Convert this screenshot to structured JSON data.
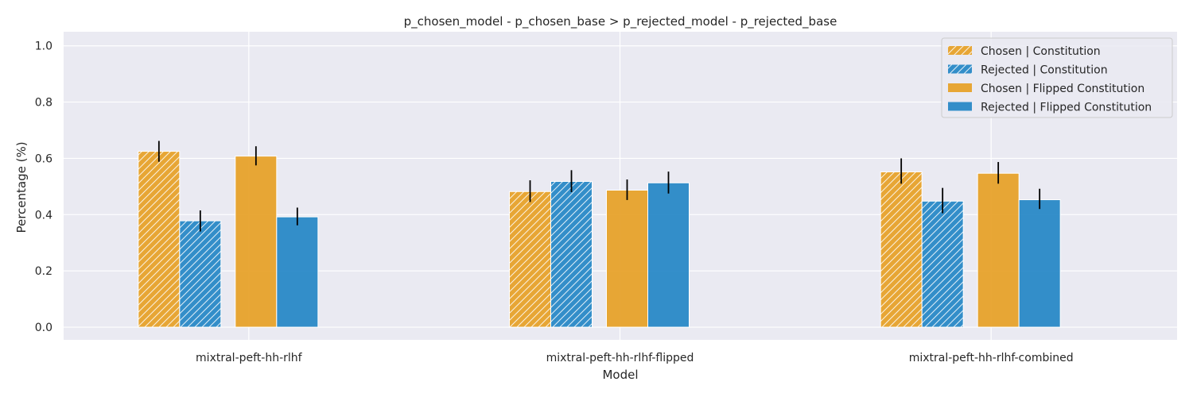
{
  "chart_data": {
    "type": "bar",
    "title": "p_chosen_model - p_chosen_base > p_rejected_model - p_rejected_base",
    "xlabel": "Model",
    "ylabel": "Percentage (%)",
    "categories": [
      "mixtral-peft-hh-rlhf",
      "mixtral-peft-hh-rlhf-flipped",
      "mixtral-peft-hh-rlhf-combined"
    ],
    "ylim": [
      -0.045,
      1.05
    ],
    "yticks": [
      "0.0",
      "0.2",
      "0.4",
      "0.6",
      "0.8",
      "1.0"
    ],
    "grid": true,
    "legend_position": "top-right",
    "series": [
      {
        "name": "Chosen | Constitution",
        "color": "#E69F25",
        "hatch": true,
        "values": [
          0.625,
          0.482,
          0.552
        ],
        "err_low": [
          0.588,
          0.445,
          0.51
        ],
        "err_high": [
          0.662,
          0.522,
          0.6
        ]
      },
      {
        "name": "Rejected | Constitution",
        "color": "#2386C6",
        "hatch": true,
        "values": [
          0.378,
          0.518,
          0.448
        ],
        "err_low": [
          0.34,
          0.48,
          0.405
        ],
        "err_high": [
          0.415,
          0.558,
          0.495
        ]
      },
      {
        "name": "Chosen | Flipped Constitution",
        "color": "#E69F25",
        "hatch": false,
        "values": [
          0.608,
          0.487,
          0.547
        ],
        "err_low": [
          0.575,
          0.452,
          0.51
        ],
        "err_high": [
          0.643,
          0.525,
          0.587
        ]
      },
      {
        "name": "Rejected | Flipped Constitution",
        "color": "#2386C6",
        "hatch": false,
        "values": [
          0.392,
          0.513,
          0.453
        ],
        "err_low": [
          0.362,
          0.475,
          0.42
        ],
        "err_high": [
          0.425,
          0.553,
          0.492
        ]
      }
    ]
  }
}
